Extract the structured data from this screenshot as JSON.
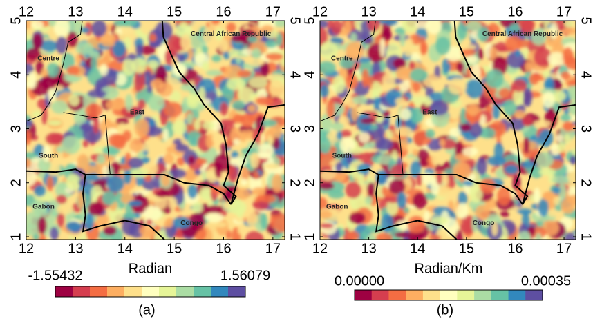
{
  "regions": [
    "Centre",
    "East",
    "South",
    "Central African Republic",
    "Gabon",
    "Congo"
  ],
  "panels": [
    {
      "label": "(a)",
      "xlim": [
        12,
        17.24
      ],
      "ylim": [
        1,
        5
      ],
      "xticks": [
        12,
        13,
        14,
        15,
        16,
        17
      ],
      "yticks": [
        1,
        2,
        3,
        4,
        5
      ],
      "colorbar": {
        "title": "Radian",
        "range": [
          -1.55432,
          1.56079
        ],
        "colors": [
          "#9e0142",
          "#d53e4f",
          "#f46d43",
          "#fdae61",
          "#fee08b",
          "#ffffbf",
          "#e6f598",
          "#abdda4",
          "#66c2a5",
          "#3288bd",
          "#5e4fa2"
        ]
      }
    },
    {
      "label": "(b)",
      "xlim": [
        12,
        17.24
      ],
      "ylim": [
        1,
        5
      ],
      "xticks": [
        12,
        13,
        14,
        15,
        16,
        17
      ],
      "yticks": [
        1,
        2,
        3,
        4,
        5
      ],
      "colorbar": {
        "title": "Radian/Km",
        "range": [
          {
            "value": 0,
            "label": "0.00000"
          },
          {
            "value": 0.00035,
            "label": "0.00035"
          }
        ],
        "colors": [
          "#9e0142",
          "#d53e4f",
          "#f46d43",
          "#fdae61",
          "#fee08b",
          "#ffffbf",
          "#e6f598",
          "#abdda4",
          "#66c2a5",
          "#3288bd",
          "#5e4fa2"
        ]
      }
    }
  ]
}
